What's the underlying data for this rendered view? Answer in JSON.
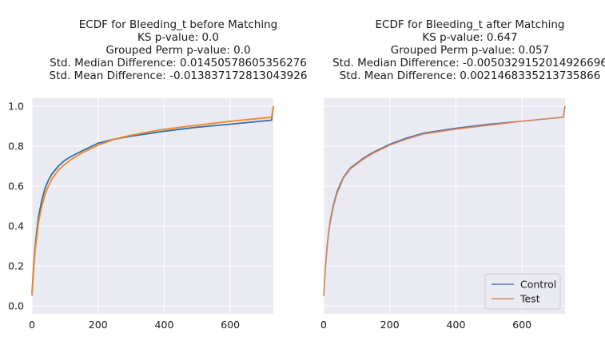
{
  "chart_data": [
    {
      "type": "line",
      "title_lines": [
        "ECDF for Bleeding_t before Matching",
        "KS p-value: 0.0",
        "Grouped Perm p-value: 0.0",
        "Std. Median Difference: 0.01450578605356276",
        "Std. Mean Difference: -0.013837172813043926"
      ],
      "xlabel": "",
      "ylabel": "",
      "xlim": [
        0,
        730
      ],
      "ylim": [
        -0.04,
        1.04
      ],
      "xticks": [
        0,
        200,
        400,
        600
      ],
      "yticks": [
        0.0,
        0.2,
        0.4,
        0.6,
        0.8,
        1.0
      ],
      "ytick_labels": [
        "0.0",
        "0.2",
        "0.4",
        "0.6",
        "0.8",
        "1.0"
      ],
      "show_yticklabels": true,
      "grid": true,
      "series": [
        {
          "name": "Control",
          "color": "#2f6fb0",
          "x": [
            0,
            5,
            10,
            15,
            20,
            30,
            40,
            50,
            60,
            80,
            100,
            120,
            150,
            200,
            250,
            300,
            400,
            500,
            600,
            725,
            730
          ],
          "y": [
            0.06,
            0.2,
            0.3,
            0.38,
            0.45,
            0.53,
            0.59,
            0.63,
            0.66,
            0.7,
            0.73,
            0.75,
            0.775,
            0.815,
            0.835,
            0.85,
            0.875,
            0.895,
            0.91,
            0.93,
            1.0
          ]
        },
        {
          "name": "Test",
          "color": "#f28a1e",
          "x": [
            0,
            5,
            10,
            15,
            20,
            30,
            40,
            50,
            60,
            80,
            100,
            120,
            150,
            200,
            250,
            300,
            400,
            500,
            600,
            725,
            730
          ],
          "y": [
            0.05,
            0.18,
            0.28,
            0.35,
            0.42,
            0.5,
            0.56,
            0.6,
            0.635,
            0.68,
            0.71,
            0.735,
            0.765,
            0.805,
            0.835,
            0.855,
            0.885,
            0.905,
            0.925,
            0.945,
            1.0
          ]
        }
      ]
    },
    {
      "type": "line",
      "title_lines": [
        "ECDF for Bleeding_t after Matching",
        "KS p-value: 0.647",
        "Grouped Perm p-value: 0.057",
        "Std. Median Difference: -0.005032915201492669​6",
        "Std. Mean Difference: 0.0021468335213735866"
      ],
      "xlabel": "",
      "ylabel": "",
      "xlim": [
        0,
        730
      ],
      "ylim": [
        -0.04,
        1.04
      ],
      "xticks": [
        0,
        200,
        400,
        600
      ],
      "yticks": [
        0.0,
        0.2,
        0.4,
        0.6,
        0.8,
        1.0
      ],
      "show_yticklabels": false,
      "grid": true,
      "legend": {
        "placement": "bottom-right",
        "entries": [
          {
            "label": "Control",
            "color": "#4c72b0"
          },
          {
            "label": "Test",
            "color": "#dd8452"
          }
        ]
      },
      "series": [
        {
          "name": "Control",
          "color": "#4c72b0",
          "x": [
            0,
            5,
            10,
            15,
            20,
            30,
            40,
            50,
            60,
            80,
            100,
            120,
            150,
            200,
            250,
            300,
            400,
            500,
            600,
            725,
            730
          ],
          "y": [
            0.05,
            0.19,
            0.29,
            0.37,
            0.43,
            0.51,
            0.57,
            0.61,
            0.645,
            0.69,
            0.715,
            0.74,
            0.77,
            0.81,
            0.84,
            0.865,
            0.89,
            0.91,
            0.925,
            0.945,
            1.0
          ]
        },
        {
          "name": "Test",
          "color": "#dd8452",
          "x": [
            0,
            5,
            10,
            15,
            20,
            30,
            40,
            50,
            60,
            80,
            100,
            120,
            150,
            200,
            250,
            300,
            400,
            500,
            600,
            725,
            730
          ],
          "y": [
            0.05,
            0.18,
            0.28,
            0.36,
            0.42,
            0.5,
            0.56,
            0.6,
            0.64,
            0.685,
            0.71,
            0.735,
            0.765,
            0.805,
            0.835,
            0.86,
            0.885,
            0.905,
            0.925,
            0.945,
            1.0
          ]
        }
      ]
    }
  ]
}
